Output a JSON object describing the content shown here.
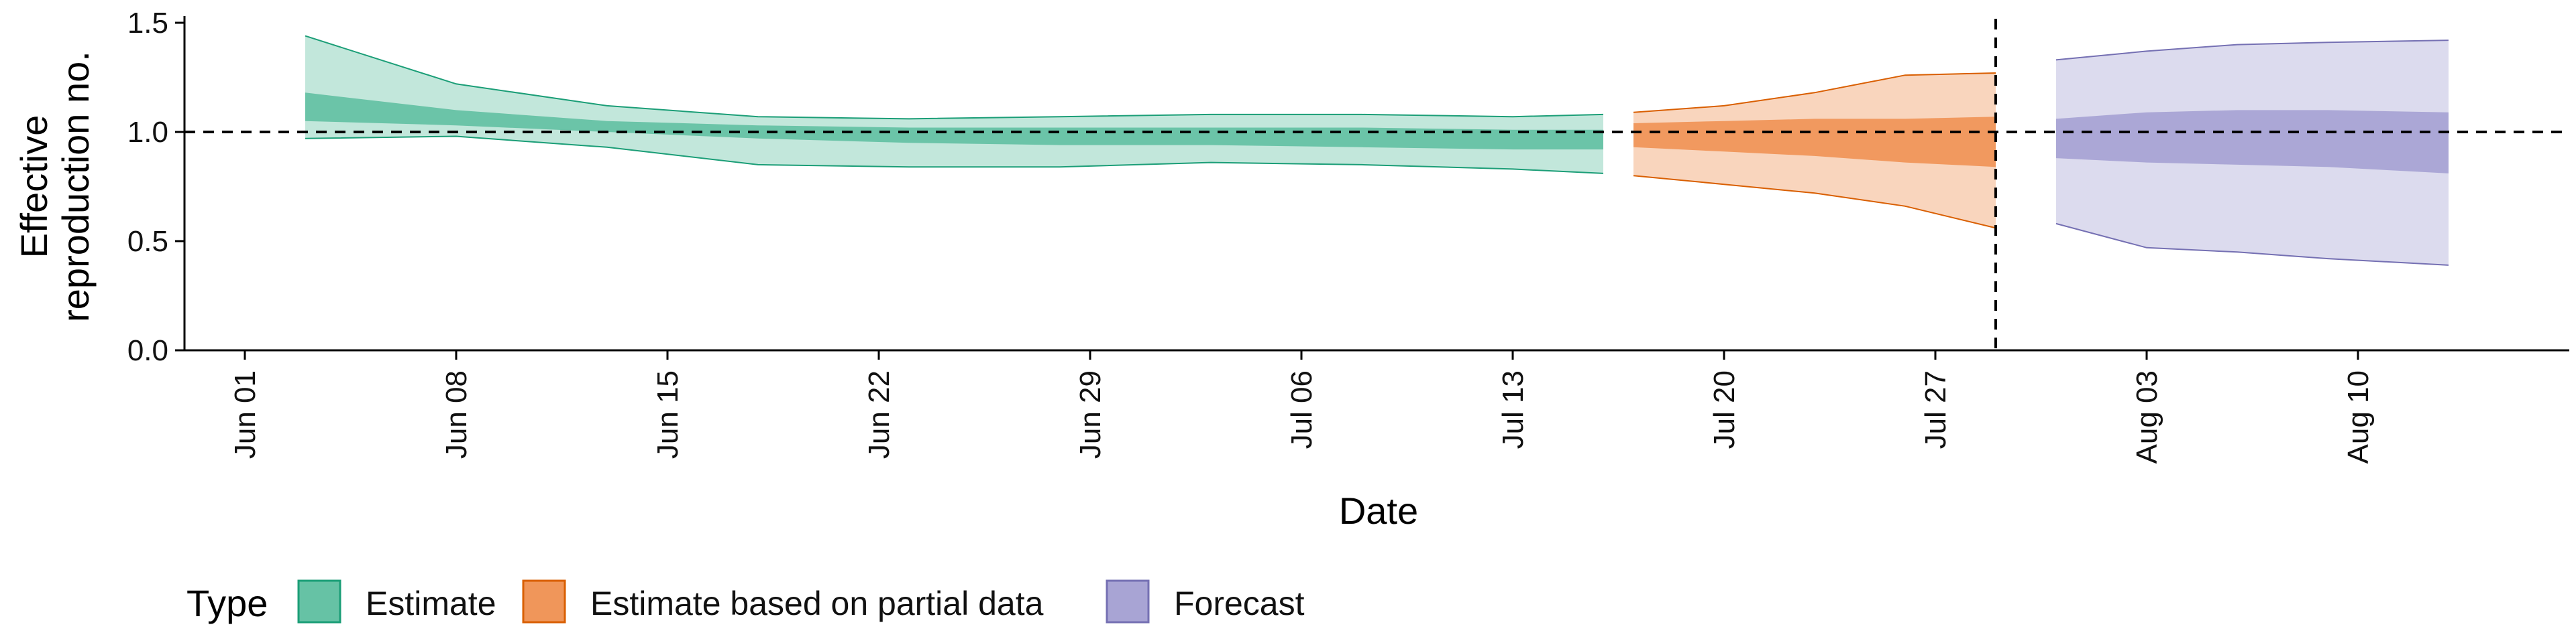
{
  "chart_data": {
    "type": "area",
    "title": "",
    "xlabel": "Date",
    "ylabel_lines": [
      "Effective",
      "reproduction no."
    ],
    "ylim": [
      0,
      1.5
    ],
    "yticks": [
      0.0,
      0.5,
      1.0,
      1.5
    ],
    "ytick_labels": [
      "0.0",
      "0.5",
      "1.0",
      "1.5"
    ],
    "xlim": [
      "2020-05-30",
      "2020-08-17"
    ],
    "xticks": [
      "2020-06-01",
      "2020-06-08",
      "2020-06-15",
      "2020-06-22",
      "2020-06-29",
      "2020-07-06",
      "2020-07-13",
      "2020-07-20",
      "2020-07-27",
      "2020-08-03",
      "2020-08-10"
    ],
    "xtick_labels": [
      "Jun 01",
      "Jun 08",
      "Jun 15",
      "Jun 22",
      "Jun 29",
      "Jul 06",
      "Jul 13",
      "Jul 20",
      "Jul 27",
      "Aug 03",
      "Aug 10"
    ],
    "reference_hline": 1.0,
    "reference_vline": "2020-07-29",
    "grid": false,
    "legend": {
      "title": "Type",
      "position": "bottom-left",
      "entries": [
        {
          "name": "Estimate",
          "fill": "#66c2a5",
          "stroke": "#1b9e77"
        },
        {
          "name": "Estimate based on partial data",
          "fill": "#f0965a",
          "stroke": "#d95f02"
        },
        {
          "name": "Forecast",
          "fill": "#a8a4d4",
          "stroke": "#7570b3"
        }
      ]
    },
    "series": [
      {
        "name": "Estimate",
        "fill": "#66c2a5",
        "stroke": "#1b9e77",
        "x": [
          "2020-06-03",
          "2020-06-08",
          "2020-06-13",
          "2020-06-18",
          "2020-06-23",
          "2020-06-28",
          "2020-07-03",
          "2020-07-08",
          "2020-07-13",
          "2020-07-16"
        ],
        "lower90": [
          0.97,
          0.98,
          0.93,
          0.85,
          0.84,
          0.84,
          0.86,
          0.85,
          0.83,
          0.81
        ],
        "upper90": [
          1.44,
          1.22,
          1.12,
          1.07,
          1.06,
          1.07,
          1.08,
          1.08,
          1.07,
          1.08
        ],
        "lower50": [
          1.05,
          1.03,
          1.0,
          0.97,
          0.95,
          0.94,
          0.94,
          0.93,
          0.92,
          0.92
        ],
        "upper50": [
          1.18,
          1.1,
          1.05,
          1.03,
          1.02,
          1.02,
          1.02,
          1.02,
          1.01,
          1.01
        ]
      },
      {
        "name": "Estimate based on partial data",
        "fill": "#f0965a",
        "stroke": "#d95f02",
        "x": [
          "2020-07-17",
          "2020-07-20",
          "2020-07-23",
          "2020-07-26",
          "2020-07-29"
        ],
        "lower90": [
          0.8,
          0.76,
          0.72,
          0.66,
          0.56
        ],
        "upper90": [
          1.09,
          1.12,
          1.18,
          1.26,
          1.27
        ],
        "lower50": [
          0.93,
          0.91,
          0.89,
          0.86,
          0.84
        ],
        "upper50": [
          1.04,
          1.05,
          1.06,
          1.06,
          1.07
        ]
      },
      {
        "name": "Forecast",
        "fill": "#a8a4d4",
        "stroke": "#7570b3",
        "x": [
          "2020-07-31",
          "2020-08-03",
          "2020-08-06",
          "2020-08-09",
          "2020-08-13"
        ],
        "lower90": [
          0.58,
          0.47,
          0.45,
          0.42,
          0.39
        ],
        "upper90": [
          1.33,
          1.37,
          1.4,
          1.41,
          1.42
        ],
        "lower50": [
          0.88,
          0.86,
          0.85,
          0.84,
          0.81
        ],
        "upper50": [
          1.06,
          1.09,
          1.1,
          1.1,
          1.09
        ]
      }
    ]
  }
}
